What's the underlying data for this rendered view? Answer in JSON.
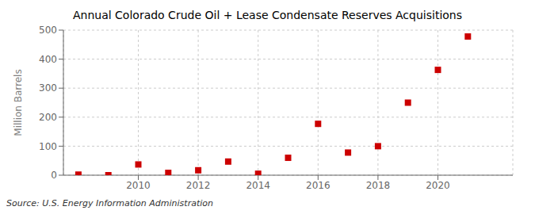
{
  "chart_data": {
    "type": "scatter",
    "title": "Annual Colorado Crude Oil + Lease Condensate Reserves Acquisitions",
    "ylabel": "Million Barrels",
    "source": "Source: U.S. Energy Information Administration",
    "x": [
      2008,
      2009,
      2010,
      2011,
      2012,
      2013,
      2014,
      2015,
      2016,
      2017,
      2018,
      2019,
      2020,
      2021
    ],
    "values": [
      2,
      0,
      37,
      8,
      17,
      47,
      5,
      60,
      177,
      78,
      100,
      250,
      363,
      478
    ],
    "color": "#cc0000",
    "marker": "square",
    "xlim": [
      2007.5,
      2022.5
    ],
    "xticks": [
      2010,
      2012,
      2014,
      2016,
      2018,
      2020
    ],
    "ylim": [
      0,
      500
    ],
    "yticks": [
      0,
      100,
      200,
      300,
      400,
      500
    ],
    "grid": true
  }
}
